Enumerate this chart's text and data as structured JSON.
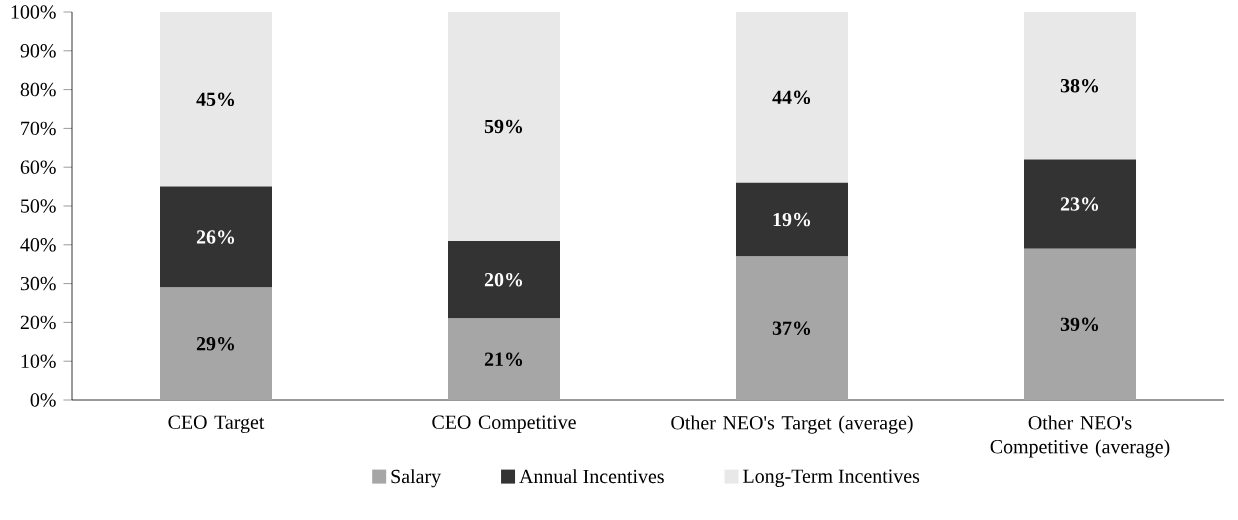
{
  "chart_data": {
    "type": "bar",
    "stacked": true,
    "categories": [
      "CEO Target",
      "CEO Competitive",
      "Other NEO's Target (average)",
      "Other NEO's Competitive (average)"
    ],
    "series": [
      {
        "name": "Salary",
        "color": "#a6a6a6",
        "values": [
          29,
          21,
          37,
          39
        ],
        "value_labels": [
          "29%",
          "21%",
          "37%",
          "39%"
        ]
      },
      {
        "name": "Annual Incentives",
        "color": "#333333",
        "values": [
          26,
          20,
          19,
          23
        ],
        "value_labels": [
          "26%",
          "20%",
          "19%",
          "23%"
        ]
      },
      {
        "name": "Long-Term Incentives",
        "color": "#e8e8e8",
        "values": [
          45,
          59,
          44,
          38
        ],
        "value_labels": [
          "45%",
          "59%",
          "44%",
          "38%"
        ]
      }
    ],
    "ylim": [
      0,
      100
    ],
    "yticks": [
      {
        "value": 0,
        "label": "0%"
      },
      {
        "value": 10,
        "label": "10%"
      },
      {
        "value": 20,
        "label": "20%"
      },
      {
        "value": 30,
        "label": "30%"
      },
      {
        "value": 40,
        "label": "40%"
      },
      {
        "value": 50,
        "label": "50%"
      },
      {
        "value": 60,
        "label": "60%"
      },
      {
        "value": 70,
        "label": "70%"
      },
      {
        "value": 80,
        "label": "80%"
      },
      {
        "value": 90,
        "label": "90%"
      },
      {
        "value": 100,
        "label": "100%"
      }
    ],
    "legend": "bottom"
  }
}
